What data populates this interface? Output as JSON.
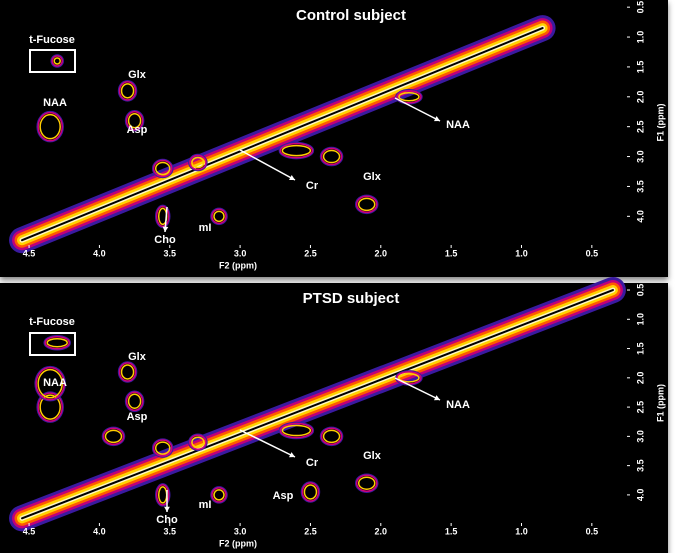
{
  "chart_data": [
    {
      "type": "spectrum",
      "title": "Control subject",
      "xlabel": "F2 (ppm)",
      "ylabel": "F1 (ppm)",
      "xlim": [
        4.6,
        0.25
      ],
      "ylim": [
        0.38,
        4.48
      ],
      "xticks": [
        4.5,
        {
          "value": 4,
          "label": "4.0"
        },
        3.5,
        {
          "value": 3,
          "label": "3.0"
        },
        2.5,
        {
          "value": 2,
          "label": "2.0"
        },
        1.5,
        {
          "value": 1,
          "label": "1.0"
        },
        0.5
      ],
      "yticks": [
        0.5,
        {
          "value": 1,
          "label": "1.0"
        },
        1.5,
        {
          "value": 2,
          "label": "2.0"
        },
        2.5,
        {
          "value": 3,
          "label": "3.0"
        },
        3.5,
        {
          "value": 4,
          "label": "4.0"
        }
      ],
      "annotations": [
        "t-Fucose",
        "NAA",
        "Glx",
        "Asp",
        "Cho",
        "mI",
        "Cr",
        "Glx",
        "NAA"
      ]
    },
    {
      "type": "spectrum",
      "title": "PTSD subject",
      "xlabel": "F2 (ppm)",
      "ylabel": "F1 (ppm)",
      "xlim": [
        4.6,
        0.25
      ],
      "ylim": [
        0.38,
        4.48
      ],
      "xticks": [
        4.5,
        {
          "value": 4,
          "label": "4.0"
        },
        3.5,
        {
          "value": 3,
          "label": "3.0"
        },
        2.5,
        {
          "value": 2,
          "label": "2.0"
        },
        1.5,
        {
          "value": 1,
          "label": "1.0"
        },
        0.5
      ],
      "yticks": [
        0.5,
        {
          "value": 1,
          "label": "1.0"
        },
        1.5,
        {
          "value": 2,
          "label": "2.0"
        },
        2.5,
        {
          "value": 3,
          "label": "3.0"
        },
        3.5,
        {
          "value": 4,
          "label": "4.0"
        }
      ],
      "annotations": [
        "t-Fucose",
        "NAA",
        "Glx",
        "Asp",
        "Cho",
        "mI",
        "Cr",
        "Glx",
        "Asp",
        "NAA"
      ]
    }
  ]
}
